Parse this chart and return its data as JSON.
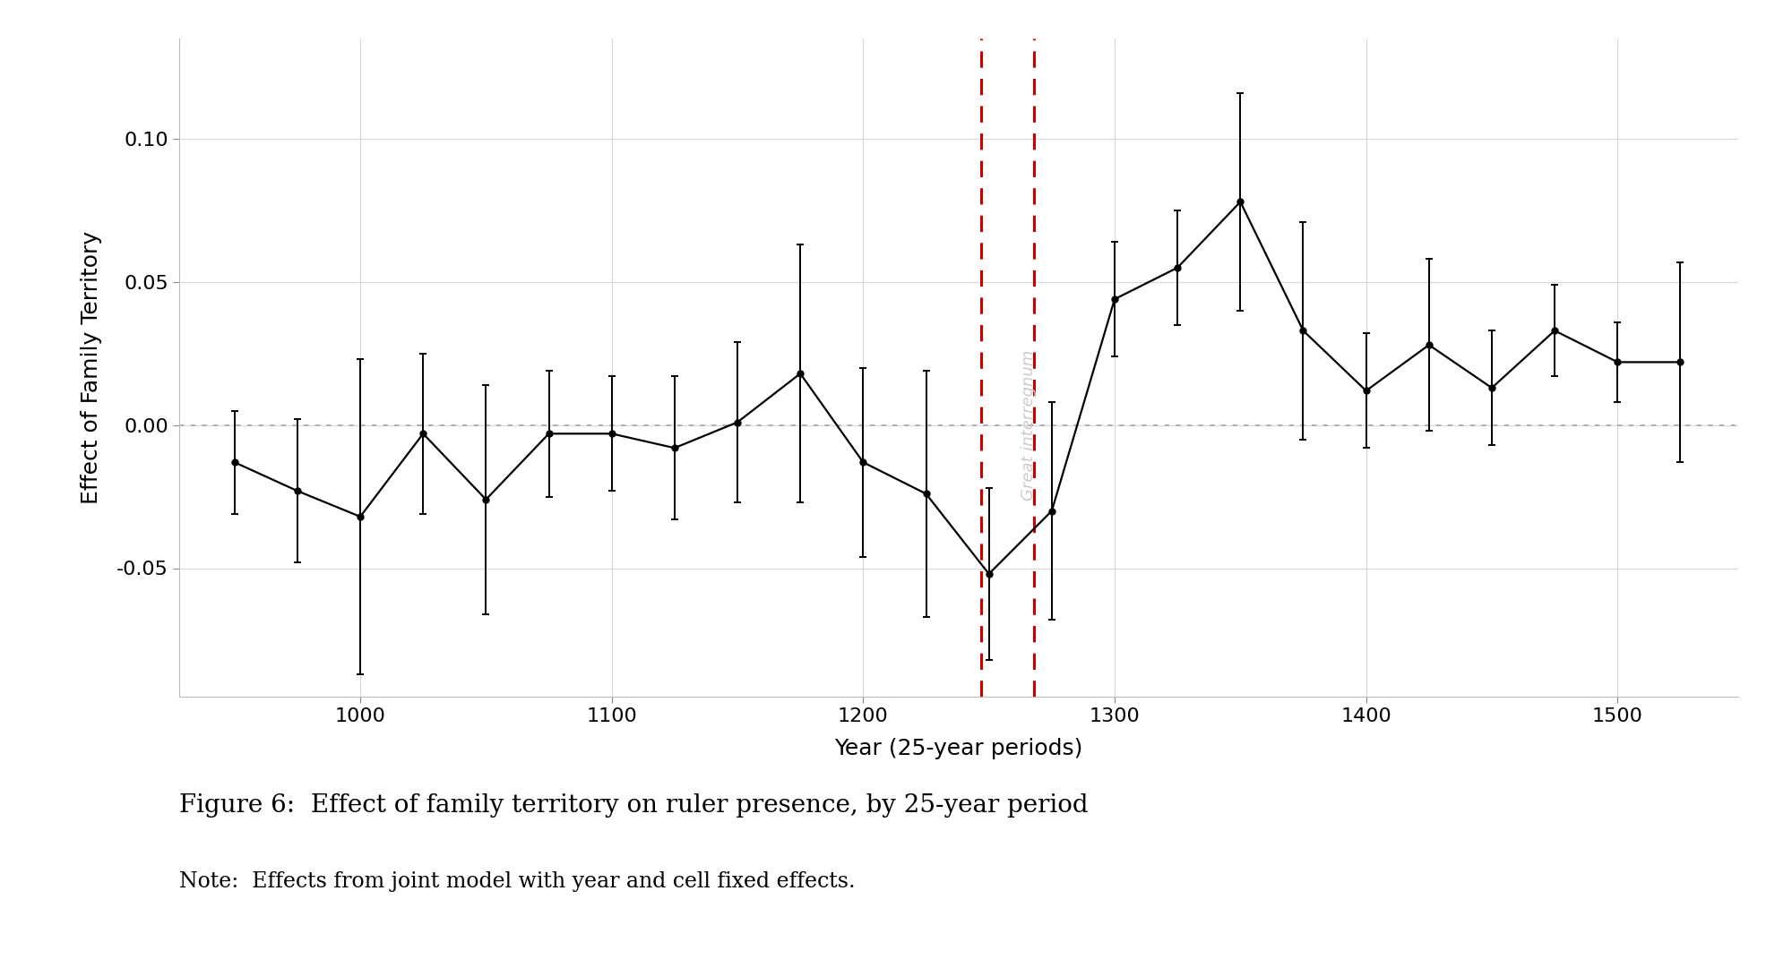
{
  "x": [
    950,
    975,
    1000,
    1025,
    1050,
    1075,
    1100,
    1125,
    1150,
    1175,
    1200,
    1225,
    1250,
    1275,
    1300,
    1325,
    1350,
    1375,
    1400,
    1425,
    1450,
    1475,
    1500,
    1525
  ],
  "y": [
    -0.013,
    -0.023,
    -0.032,
    -0.003,
    -0.026,
    -0.003,
    -0.003,
    -0.008,
    0.001,
    0.018,
    -0.013,
    -0.024,
    -0.052,
    -0.03,
    0.044,
    0.055,
    0.078,
    0.033,
    0.012,
    0.028,
    0.013,
    0.033,
    0.022,
    0.022
  ],
  "yerr_low": [
    0.018,
    0.025,
    0.055,
    0.028,
    0.04,
    0.022,
    0.02,
    0.025,
    0.028,
    0.045,
    0.033,
    0.043,
    0.03,
    0.038,
    0.02,
    0.02,
    0.038,
    0.038,
    0.02,
    0.03,
    0.02,
    0.016,
    0.014,
    0.035
  ],
  "yerr_high": [
    0.018,
    0.025,
    0.055,
    0.028,
    0.04,
    0.022,
    0.02,
    0.025,
    0.028,
    0.045,
    0.033,
    0.043,
    0.03,
    0.038,
    0.02,
    0.02,
    0.038,
    0.038,
    0.02,
    0.03,
    0.02,
    0.016,
    0.014,
    0.035
  ],
  "vline1": 1247,
  "vline2": 1268,
  "vline_label": "Great interregnum",
  "xlabel": "Year (25-year periods)",
  "ylabel": "Effect of Family Territory",
  "figure_caption": "Figure 6:  Effect of family territory on ruler presence, by 25-year period",
  "note": "Note:  Effects from joint model with year and cell fixed effects.",
  "ylim": [
    -0.095,
    0.135
  ],
  "xlim": [
    928,
    1548
  ],
  "yticks": [
    -0.05,
    0.0,
    0.05,
    0.1
  ],
  "xticks": [
    1000,
    1100,
    1200,
    1300,
    1400,
    1500
  ],
  "line_color": "#000000",
  "vline_color": "#cc0000",
  "grid_color": "#d9d9d9",
  "background_color": "#ffffff",
  "text_color": "#000000",
  "caption_fontsize": 20,
  "note_fontsize": 17,
  "axis_label_fontsize": 18,
  "tick_fontsize": 16
}
